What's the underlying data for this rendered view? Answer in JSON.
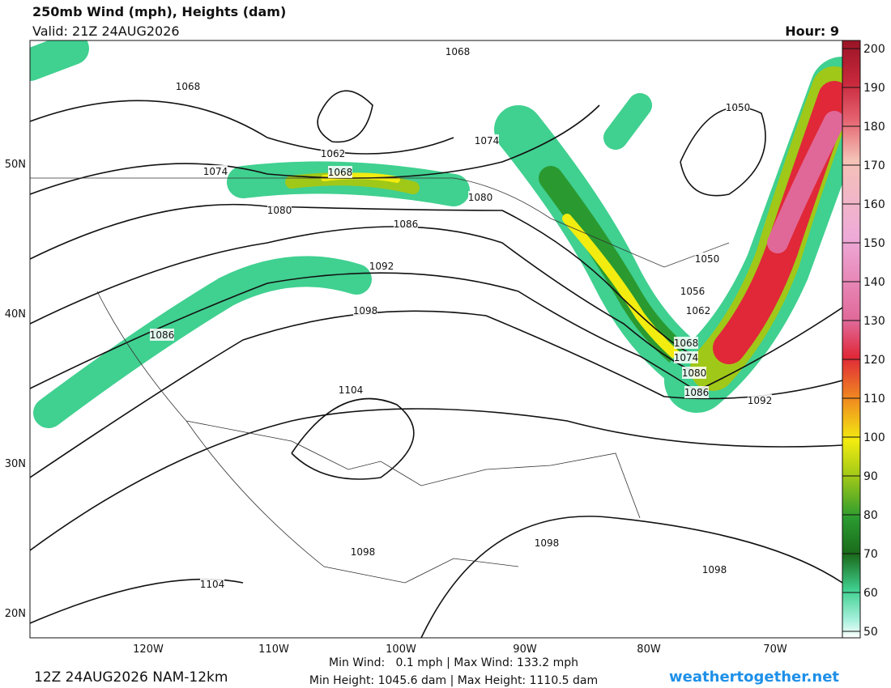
{
  "header": {
    "title": "250mb Wind (mph), Heights (dam)",
    "valid": "Valid: 21Z 24AUG2026",
    "hour": "Hour: 9"
  },
  "map": {
    "lat_labels": [
      "50N",
      "40N",
      "30N",
      "20N"
    ],
    "lon_labels": [
      "120W",
      "110W",
      "100W",
      "90W",
      "80W",
      "70W"
    ],
    "contour_labels": [
      "1068",
      "1068",
      "1062",
      "1068",
      "1074",
      "1074",
      "1080",
      "1080",
      "1086",
      "1092",
      "1098",
      "1086",
      "1104",
      "1050",
      "1050",
      "1056",
      "1062",
      "1068",
      "1074",
      "1080",
      "1086",
      "1092",
      "1098",
      "1098",
      "1098",
      "1104"
    ]
  },
  "colorbar": {
    "labels": [
      "200",
      "190",
      "180",
      "170",
      "160",
      "150",
      "140",
      "130",
      "120",
      "110",
      "100",
      "90",
      "80",
      "70",
      "60",
      "50"
    ]
  },
  "footer": {
    "run": "12Z 24AUG2026 NAM-12km",
    "wind": "Min Wind:   0.1 mph | Max Wind: 133.2 mph",
    "height": "Min Height: 1045.6 dam | Max Height: 1110.5 dam",
    "site": "weathertogether.net"
  }
}
